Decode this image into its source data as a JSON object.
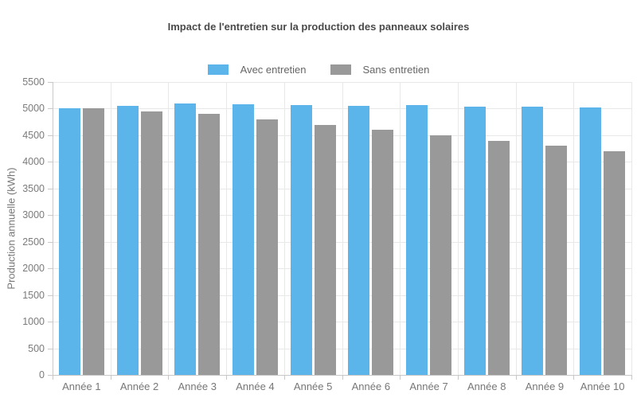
{
  "title": "Impact de l'entretien sur la production des panneaux solaires",
  "legend": [
    {
      "label": "Avec entretien",
      "color": "#5bb5ea"
    },
    {
      "label": "Sans entretien",
      "color": "#999999"
    }
  ],
  "ylabel": "Production annuelle (kWh)",
  "colors": {
    "grid": "#e8e8e8",
    "axis": "#c8c8c8",
    "title_text": "#4a4a4a",
    "tick_text": "#7b7b7b"
  },
  "chart_data": {
    "type": "bar",
    "title": "Impact de l'entretien sur la production des panneaux solaires",
    "categories": [
      "Année 1",
      "Année 2",
      "Année 3",
      "Année 4",
      "Année 5",
      "Année 6",
      "Année 7",
      "Année 8",
      "Année 9",
      "Année 10"
    ],
    "series": [
      {
        "name": "Avec entretien",
        "color": "#5bb5ea",
        "values": [
          5000,
          5050,
          5100,
          5080,
          5070,
          5050,
          5060,
          5040,
          5030,
          5020
        ]
      },
      {
        "name": "Sans entretien",
        "color": "#999999",
        "values": [
          5000,
          4950,
          4900,
          4800,
          4700,
          4600,
          4500,
          4400,
          4300,
          4200
        ]
      }
    ],
    "xlabel": "",
    "ylabel": "Production annuelle (kWh)",
    "ylim": [
      0,
      5500
    ],
    "ytick_step": 500,
    "grid": true,
    "legend_position": "top"
  }
}
